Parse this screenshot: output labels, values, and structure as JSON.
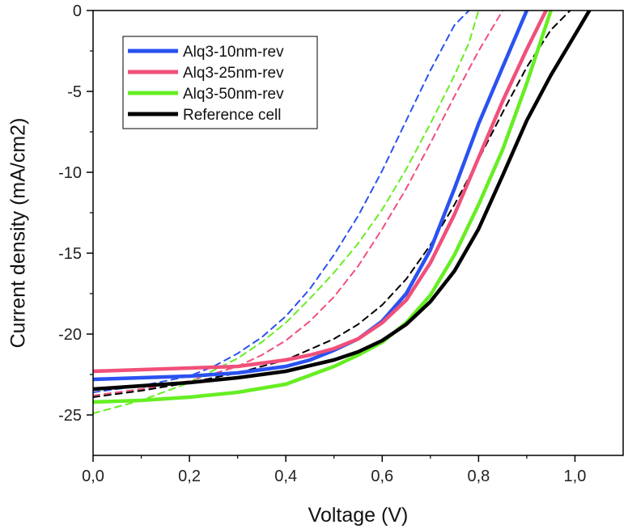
{
  "chart_data": {
    "type": "line",
    "title": "",
    "xlabel": "Voltage (V)",
    "ylabel": "Current density (mA/cm2)",
    "xlim": [
      0.0,
      1.1
    ],
    "ylim": [
      -27.5,
      0
    ],
    "x_ticks": [
      0.0,
      0.2,
      0.4,
      0.6,
      0.8,
      1.0
    ],
    "x_tick_labels": [
      "0,0",
      "0,2",
      "0,4",
      "0,6",
      "0,8",
      "1,0"
    ],
    "y_ticks": [
      0,
      -5,
      -10,
      -15,
      -20,
      -25
    ],
    "y_tick_labels": [
      "0",
      "-5",
      "-10",
      "-15",
      "-20",
      "-25"
    ],
    "grid": false,
    "legend_position": "top-left",
    "series": [
      {
        "name": "Alq3-10nm-rev",
        "color": "#2a52f0",
        "style": "solid",
        "x": [
          0.0,
          0.1,
          0.2,
          0.3,
          0.4,
          0.45,
          0.5,
          0.55,
          0.6,
          0.65,
          0.7,
          0.75,
          0.8,
          0.85,
          0.9
        ],
        "y": [
          -22.8,
          -22.7,
          -22.6,
          -22.4,
          -22.0,
          -21.6,
          -21.0,
          -20.3,
          -19.2,
          -17.5,
          -14.8,
          -11.0,
          -7.0,
          -3.5,
          0.0
        ]
      },
      {
        "name": "Alq3-25nm-rev",
        "color": "#f0507a",
        "style": "solid",
        "x": [
          0.0,
          0.1,
          0.2,
          0.3,
          0.4,
          0.45,
          0.5,
          0.55,
          0.6,
          0.65,
          0.7,
          0.75,
          0.8,
          0.85,
          0.9,
          0.94
        ],
        "y": [
          -22.3,
          -22.2,
          -22.1,
          -22.0,
          -21.6,
          -21.3,
          -20.9,
          -20.3,
          -19.3,
          -17.9,
          -15.6,
          -12.6,
          -9.1,
          -5.6,
          -2.4,
          0.0
        ]
      },
      {
        "name": "Alq3-50nm-rev",
        "color": "#66ee22",
        "style": "solid",
        "x": [
          0.0,
          0.1,
          0.2,
          0.3,
          0.4,
          0.5,
          0.55,
          0.6,
          0.65,
          0.7,
          0.75,
          0.8,
          0.85,
          0.9,
          0.95
        ],
        "y": [
          -24.2,
          -24.1,
          -23.9,
          -23.6,
          -23.1,
          -22.0,
          -21.3,
          -20.5,
          -19.3,
          -17.6,
          -15.1,
          -12.0,
          -8.6,
          -4.5,
          0.0
        ]
      },
      {
        "name": "Reference cell",
        "color": "#000000",
        "style": "solid",
        "x": [
          0.0,
          0.1,
          0.2,
          0.3,
          0.4,
          0.5,
          0.55,
          0.6,
          0.65,
          0.7,
          0.75,
          0.8,
          0.85,
          0.9,
          0.95,
          1.0,
          1.03
        ],
        "y": [
          -23.4,
          -23.2,
          -23.0,
          -22.7,
          -22.3,
          -21.6,
          -21.1,
          -20.4,
          -19.4,
          -18.0,
          -16.1,
          -13.5,
          -10.2,
          -6.8,
          -4.0,
          -1.5,
          0.0
        ]
      },
      {
        "color": "#2a52f0",
        "style": "dashed",
        "x": [
          0.0,
          0.1,
          0.2,
          0.25,
          0.3,
          0.35,
          0.4,
          0.45,
          0.5,
          0.55,
          0.6,
          0.65,
          0.7,
          0.75,
          0.78
        ],
        "y": [
          -23.6,
          -23.2,
          -22.6,
          -22.0,
          -21.2,
          -20.2,
          -18.9,
          -17.2,
          -15.1,
          -12.7,
          -9.9,
          -6.8,
          -3.7,
          -0.9,
          0.0
        ]
      },
      {
        "color": "#f0507a",
        "style": "dashed",
        "x": [
          0.0,
          0.1,
          0.2,
          0.3,
          0.35,
          0.4,
          0.45,
          0.5,
          0.55,
          0.6,
          0.65,
          0.7,
          0.75,
          0.8,
          0.85
        ],
        "y": [
          -23.8,
          -23.4,
          -22.9,
          -22.0,
          -21.3,
          -20.4,
          -19.2,
          -17.7,
          -15.8,
          -13.5,
          -11.0,
          -8.2,
          -5.3,
          -2.5,
          0.0
        ]
      },
      {
        "color": "#66ee22",
        "style": "dashed",
        "x": [
          0.0,
          0.1,
          0.2,
          0.3,
          0.35,
          0.4,
          0.45,
          0.5,
          0.55,
          0.6,
          0.65,
          0.7,
          0.75,
          0.78,
          0.8
        ],
        "y": [
          -24.9,
          -24.1,
          -23.0,
          -21.5,
          -20.5,
          -19.3,
          -17.8,
          -16.2,
          -14.4,
          -12.3,
          -9.8,
          -7.0,
          -4.0,
          -2.0,
          0.0
        ]
      },
      {
        "color": "#000000",
        "style": "dashed",
        "x": [
          0.0,
          0.1,
          0.2,
          0.3,
          0.4,
          0.5,
          0.55,
          0.6,
          0.65,
          0.7,
          0.75,
          0.8,
          0.85,
          0.9,
          0.95,
          0.99
        ],
        "y": [
          -23.9,
          -23.5,
          -23.0,
          -22.4,
          -21.6,
          -20.3,
          -19.4,
          -18.2,
          -16.6,
          -14.5,
          -12.0,
          -9.2,
          -6.3,
          -3.5,
          -1.2,
          0.0
        ]
      }
    ]
  }
}
